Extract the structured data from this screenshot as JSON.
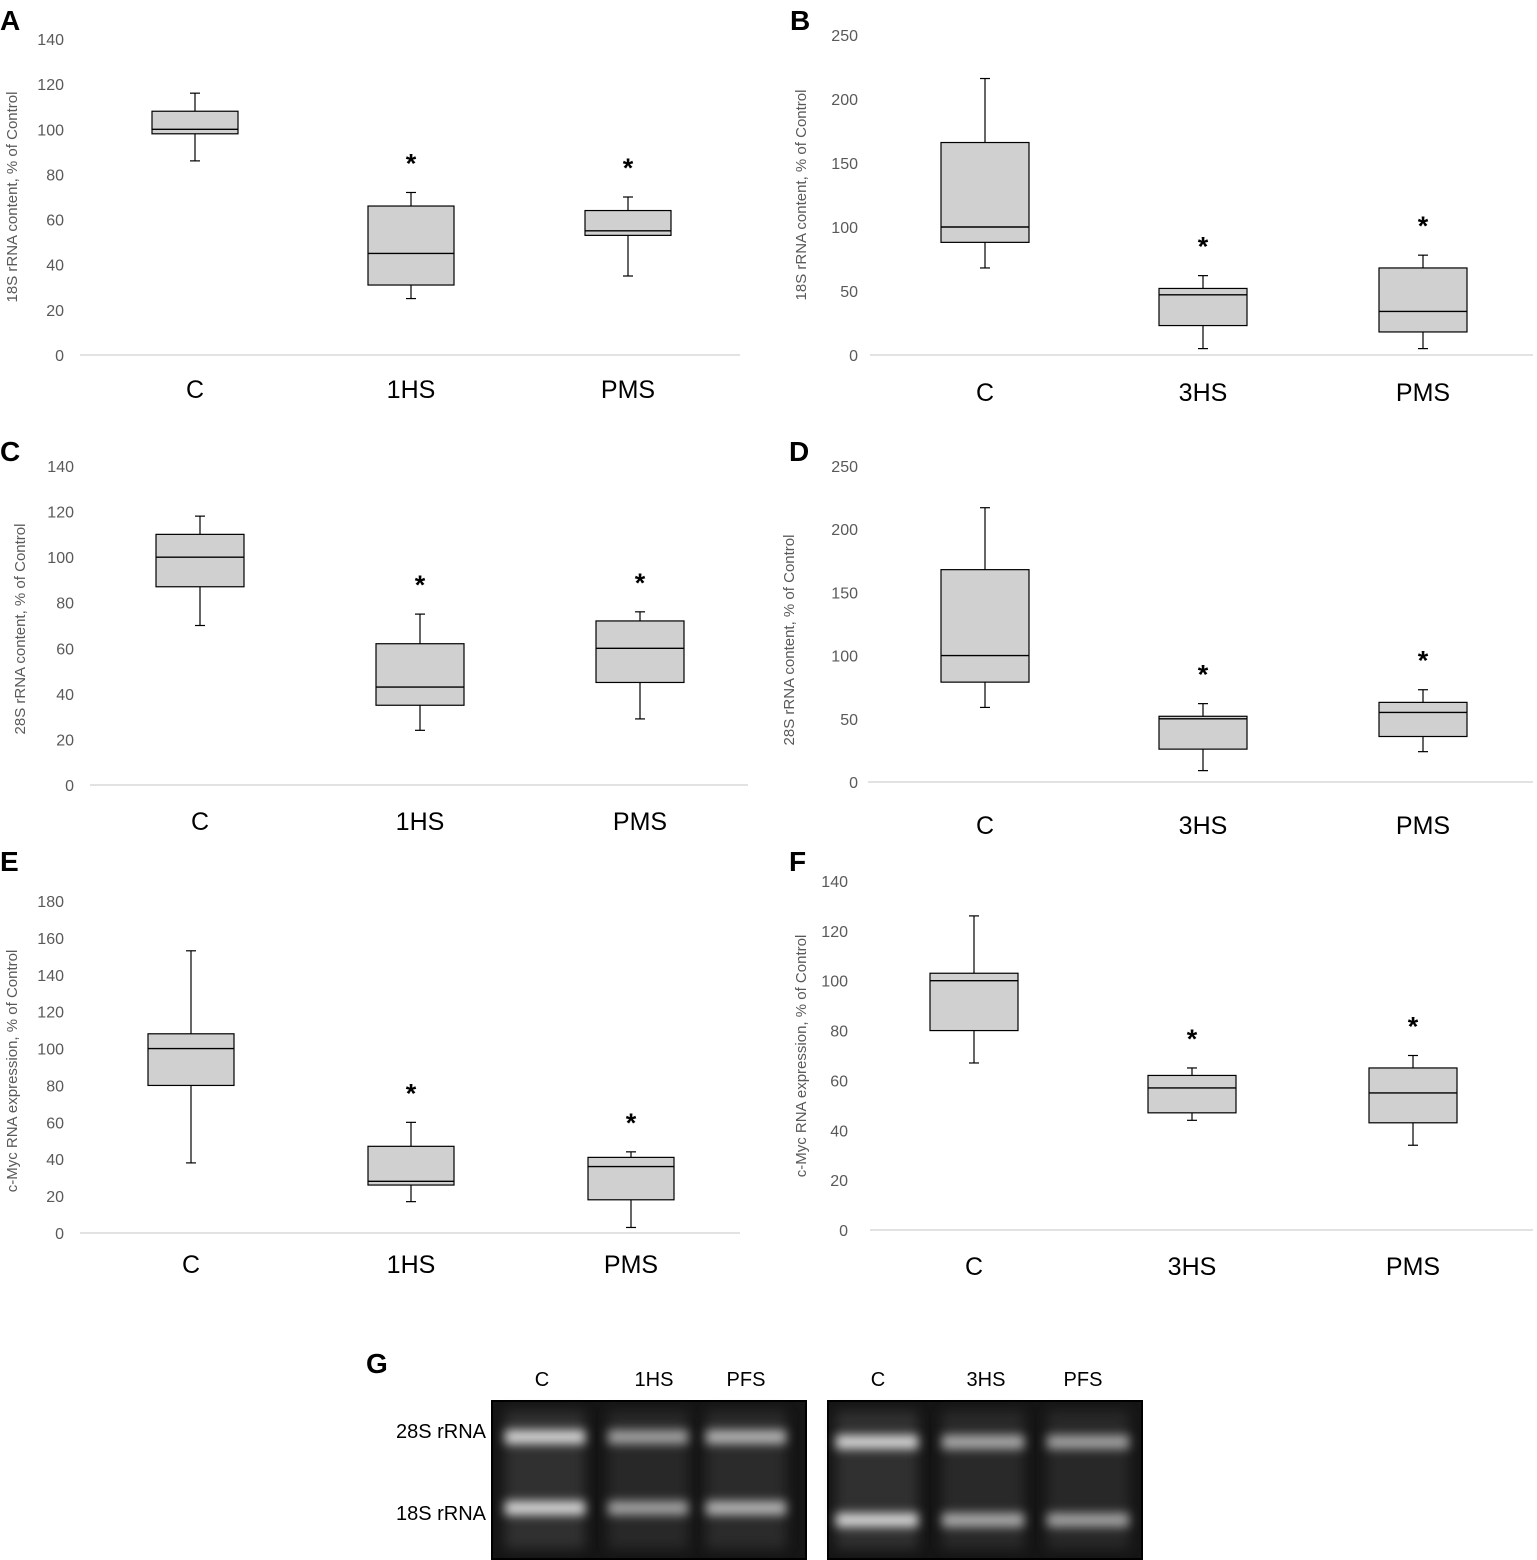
{
  "chart_data": [
    {
      "panel": "A",
      "type": "box",
      "ylabel": "18S rRNA content, % of Control",
      "ylim": [
        0,
        140
      ],
      "yticks": [
        0,
        20,
        40,
        60,
        80,
        100,
        120,
        140
      ],
      "categories": [
        "C",
        "1HS",
        "PMS"
      ],
      "boxes": [
        {
          "min": 86,
          "q1": 98,
          "median": 100,
          "q3": 108,
          "max": 116,
          "mark": ""
        },
        {
          "min": 25,
          "q1": 31,
          "median": 45,
          "q3": 66,
          "max": 72,
          "mark": "*"
        },
        {
          "min": 35,
          "q1": 53,
          "median": 55,
          "q3": 64,
          "max": 70,
          "mark": "*"
        }
      ]
    },
    {
      "panel": "B",
      "type": "box",
      "ylabel": "18S rRNA content, % of Control",
      "ylim": [
        0,
        250
      ],
      "yticks": [
        0,
        50,
        100,
        150,
        200,
        250
      ],
      "categories": [
        "C",
        "3HS",
        "PMS"
      ],
      "boxes": [
        {
          "min": 68,
          "q1": 88,
          "median": 100,
          "q3": 166,
          "max": 216,
          "mark": ""
        },
        {
          "min": 5,
          "q1": 23,
          "median": 47,
          "q3": 52,
          "max": 62,
          "mark": "*"
        },
        {
          "min": 5,
          "q1": 18,
          "median": 34,
          "q3": 68,
          "max": 78,
          "mark": "*"
        }
      ]
    },
    {
      "panel": "C",
      "type": "box",
      "ylabel": "28S rRNA content, % of Control",
      "ylim": [
        0,
        140
      ],
      "yticks": [
        0,
        20,
        40,
        60,
        80,
        100,
        120,
        140
      ],
      "categories": [
        "C",
        "1HS",
        "PMS"
      ],
      "boxes": [
        {
          "min": 70,
          "q1": 87,
          "median": 100,
          "q3": 110,
          "max": 118,
          "mark": ""
        },
        {
          "min": 24,
          "q1": 35,
          "median": 43,
          "q3": 62,
          "max": 75,
          "mark": "*"
        },
        {
          "min": 29,
          "q1": 45,
          "median": 60,
          "q3": 72,
          "max": 76,
          "mark": "*"
        }
      ]
    },
    {
      "panel": "D",
      "type": "box",
      "ylabel": "28S rRNA content, % of Control",
      "ylim": [
        0,
        250
      ],
      "yticks": [
        0,
        50,
        100,
        150,
        200,
        250
      ],
      "categories": [
        "C",
        "3HS",
        "PMS"
      ],
      "boxes": [
        {
          "min": 59,
          "q1": 79,
          "median": 100,
          "q3": 168,
          "max": 217,
          "mark": ""
        },
        {
          "min": 9,
          "q1": 26,
          "median": 50,
          "q3": 52,
          "max": 62,
          "mark": "*"
        },
        {
          "min": 24,
          "q1": 36,
          "median": 55,
          "q3": 63,
          "max": 73,
          "mark": "*"
        }
      ]
    },
    {
      "panel": "E",
      "type": "box",
      "ylabel": "c-Myc RNA  expression, % of Control",
      "ylim": [
        0,
        180
      ],
      "yticks": [
        0,
        20,
        40,
        60,
        80,
        100,
        120,
        140,
        160,
        180
      ],
      "categories": [
        "C",
        "1HS",
        "PMS"
      ],
      "boxes": [
        {
          "min": 38,
          "q1": 80,
          "median": 100,
          "q3": 108,
          "max": 153,
          "mark": ""
        },
        {
          "min": 17,
          "q1": 26,
          "median": 28,
          "q3": 47,
          "max": 60,
          "mark": "*"
        },
        {
          "min": 3,
          "q1": 18,
          "median": 36,
          "q3": 41,
          "max": 44,
          "mark": "*"
        }
      ]
    },
    {
      "panel": "F",
      "type": "box",
      "ylabel": "c-Myc RNA  expression, % of Control",
      "ylim": [
        0,
        140
      ],
      "yticks": [
        0,
        20,
        40,
        60,
        80,
        100,
        120,
        140
      ],
      "categories": [
        "C",
        "3HS",
        "PMS"
      ],
      "boxes": [
        {
          "min": 67,
          "q1": 80,
          "median": 100,
          "q3": 103,
          "max": 126,
          "mark": ""
        },
        {
          "min": 44,
          "q1": 47,
          "median": 57,
          "q3": 62,
          "max": 65,
          "mark": "*"
        },
        {
          "min": 34,
          "q1": 43,
          "median": 55,
          "q3": 65,
          "max": 70,
          "mark": "*"
        }
      ]
    }
  ],
  "gel": {
    "panel": "G",
    "left_lanes": [
      "C",
      "1HS",
      "PFS"
    ],
    "right_lanes": [
      "C",
      "3HS",
      "PFS"
    ],
    "band_labels": [
      "28S rRNA",
      "18S rRNA"
    ]
  },
  "colors": {
    "box_fill": "#d0d0d0",
    "stroke": "#000000",
    "axis": "#d9d9d9",
    "tick_text": "#595959"
  }
}
